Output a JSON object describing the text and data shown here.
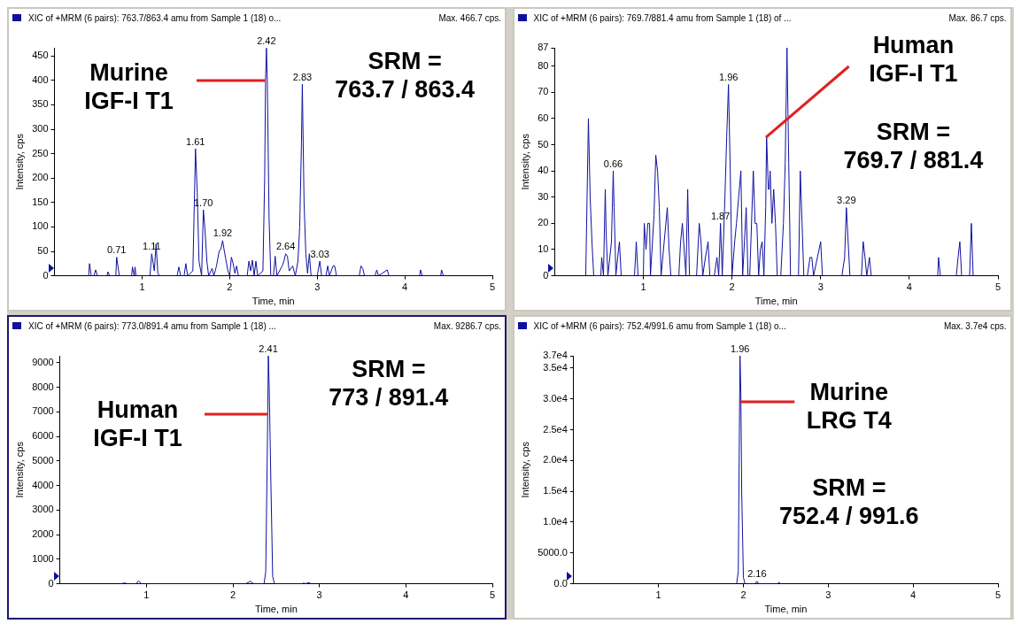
{
  "chart_data": [
    {
      "type": "line",
      "title": "XIC of +MRM (6 pairs): 763.7/863.4 amu from Sample 1 (18) o...",
      "subtitle": "Max. 466.7 cps.",
      "xlabel": "Time, min",
      "ylabel": "Intensity, cps",
      "xlim": [
        0,
        5
      ],
      "xticks": [
        1,
        2,
        3,
        4,
        5
      ],
      "ylim": [
        0,
        466.7
      ],
      "yticks": [
        0,
        50,
        100,
        150,
        200,
        250,
        300,
        350,
        400,
        450
      ],
      "grid": false,
      "legend": false,
      "marker": "none",
      "series": [
        {
          "color": "#1010a0",
          "x": [
            0.39,
            0.4,
            0.42,
            0.45,
            0.47,
            0.49,
            0.6,
            0.61,
            0.63,
            0.7,
            0.71,
            0.74,
            0.88,
            0.89,
            0.91,
            0.92,
            0.93,
            1.09,
            1.11,
            1.14,
            1.16,
            1.18,
            1.2,
            1.4,
            1.42,
            1.44,
            1.48,
            1.5,
            1.52,
            1.58,
            1.61,
            1.63,
            1.65,
            1.68,
            1.7,
            1.72,
            1.74,
            1.76,
            1.8,
            1.82,
            1.85,
            1.88,
            1.9,
            1.92,
            1.94,
            1.96,
            1.98,
            2.0,
            2.02,
            2.04,
            2.06,
            2.08,
            2.1,
            2.2,
            2.22,
            2.24,
            2.26,
            2.28,
            2.3,
            2.32,
            2.38,
            2.4,
            2.41,
            2.42,
            2.43,
            2.45,
            2.47,
            2.5,
            2.52,
            2.54,
            2.6,
            2.62,
            2.64,
            2.66,
            2.68,
            2.72,
            2.75,
            2.78,
            2.8,
            2.82,
            2.83,
            2.85,
            2.87,
            2.89,
            2.91,
            2.93,
            3.0,
            3.03,
            3.05,
            3.1,
            3.12,
            3.14,
            3.18,
            3.2,
            3.22,
            3.48,
            3.5,
            3.52,
            3.54,
            3.66,
            3.68,
            3.7,
            3.8,
            3.82,
            4.17,
            4.18,
            4.2,
            4.41,
            4.42,
            4.44
          ],
          "values": [
            0,
            25,
            0,
            0,
            12,
            0,
            0,
            8,
            0,
            0,
            38,
            0,
            0,
            18,
            0,
            18,
            0,
            0,
            45,
            10,
            65,
            5,
            0,
            0,
            18,
            0,
            0,
            25,
            0,
            10,
            260,
            170,
            30,
            0,
            135,
            90,
            30,
            0,
            15,
            0,
            20,
            50,
            55,
            72,
            50,
            30,
            10,
            0,
            38,
            25,
            5,
            20,
            0,
            0,
            30,
            10,
            32,
            0,
            30,
            0,
            10,
            200,
            400,
            466,
            400,
            120,
            0,
            0,
            40,
            0,
            20,
            30,
            45,
            40,
            10,
            20,
            0,
            30,
            100,
            270,
            392,
            150,
            45,
            5,
            45,
            0,
            0,
            30,
            0,
            0,
            20,
            0,
            20,
            20,
            0,
            0,
            20,
            15,
            0,
            0,
            12,
            0,
            12,
            0,
            0,
            12,
            0,
            0,
            12,
            0
          ]
        }
      ],
      "annotations": [
        {
          "text": "0.71",
          "x": 0.71,
          "y": 38
        },
        {
          "text": "1.11",
          "x": 1.11,
          "y": 45
        },
        {
          "text": "1.61",
          "x": 1.61,
          "y": 260
        },
        {
          "text": "1.70",
          "x": 1.7,
          "y": 135
        },
        {
          "text": "1.92",
          "x": 1.92,
          "y": 72
        },
        {
          "text": "2.42",
          "x": 2.42,
          "y": 466
        },
        {
          "text": "2.64",
          "x": 2.64,
          "y": 45
        },
        {
          "text": "2.83",
          "x": 2.83,
          "y": 392
        },
        {
          "text": "3.03",
          "x": 3.03,
          "y": 30
        },
        {
          "text": "Murine\nIGF-I T1",
          "x": 2.41,
          "y": 400
        },
        "SRM =\n763.7 / 863.4"
      ]
    },
    {
      "type": "line",
      "title": "XIC of +MRM (6 pairs): 769.7/881.4 amu from Sample 1 (18) of ...",
      "subtitle": "Max. 86.7 cps.",
      "xlabel": "Time, min",
      "ylabel": "Intensity, cps",
      "xlim": [
        0,
        5
      ],
      "xticks": [
        1,
        2,
        3,
        4,
        5
      ],
      "ylim": [
        0,
        87
      ],
      "yticks": [
        0,
        10,
        20,
        30,
        40,
        50,
        60,
        70,
        80,
        87
      ],
      "grid": false,
      "legend": false,
      "marker": "none",
      "series": [
        {
          "color": "#1010a0",
          "x": [
            0.35,
            0.38,
            0.4,
            0.42,
            0.44,
            0.52,
            0.53,
            0.55,
            0.57,
            0.58,
            0.6,
            0.64,
            0.66,
            0.67,
            0.69,
            0.71,
            0.73,
            0.75,
            0.9,
            0.92,
            0.94,
            1.0,
            1.01,
            1.03,
            1.05,
            1.07,
            1.08,
            1.12,
            1.14,
            1.16,
            1.18,
            1.2,
            1.27,
            1.29,
            1.31,
            1.4,
            1.42,
            1.44,
            1.46,
            1.48,
            1.5,
            1.52,
            1.6,
            1.63,
            1.65,
            1.67,
            1.7,
            1.73,
            1.75,
            1.8,
            1.83,
            1.85,
            1.87,
            1.89,
            1.92,
            1.94,
            1.96,
            1.98,
            2.0,
            2.03,
            2.05,
            2.1,
            2.12,
            2.16,
            2.18,
            2.2,
            2.24,
            2.26,
            2.28,
            2.3,
            2.32,
            2.34,
            2.36,
            2.38,
            2.39,
            2.41,
            2.42,
            2.43,
            2.45,
            2.47,
            2.49,
            2.51,
            2.55,
            2.58,
            2.6,
            2.62,
            2.64,
            2.66,
            2.75,
            2.77,
            2.79,
            2.81,
            2.85,
            2.88,
            2.9,
            2.92,
            3.0,
            3.02,
            3.24,
            3.27,
            3.29,
            3.31,
            3.33,
            3.46,
            3.48,
            3.5,
            3.52,
            3.55,
            3.57,
            4.32,
            4.33,
            4.35,
            4.53,
            4.55,
            4.57,
            4.59,
            4.68,
            4.7,
            4.72
          ],
          "values": [
            0,
            60,
            30,
            13,
            0,
            0,
            7,
            0,
            33,
            16,
            0,
            13,
            40,
            26,
            0,
            7,
            13,
            0,
            0,
            13,
            0,
            0,
            20,
            10,
            20,
            20,
            0,
            23,
            46,
            40,
            26,
            0,
            26,
            10,
            0,
            0,
            13,
            20,
            10,
            0,
            33,
            0,
            0,
            20,
            13,
            0,
            7,
            13,
            0,
            0,
            7,
            0,
            20,
            0,
            30,
            53,
            73,
            40,
            0,
            13,
            20,
            40,
            0,
            26,
            0,
            0,
            40,
            20,
            20,
            0,
            10,
            13,
            0,
            26,
            53,
            33,
            33,
            40,
            20,
            33,
            20,
            0,
            0,
            20,
            43,
            87,
            43,
            0,
            0,
            40,
            20,
            0,
            0,
            7,
            7,
            0,
            13,
            0,
            0,
            7,
            26,
            13,
            0,
            0,
            13,
            7,
            0,
            7,
            0,
            0,
            7,
            0,
            0,
            7,
            13,
            0,
            0,
            20,
            0
          ]
        }
      ],
      "annotations": [
        {
          "text": "0.66",
          "x": 0.66,
          "y": 40
        },
        {
          "text": "1.87",
          "x": 1.87,
          "y": 20
        },
        {
          "text": "1.96",
          "x": 1.96,
          "y": 73
        },
        {
          "text": "3.29",
          "x": 3.29,
          "y": 26
        },
        {
          "text": "Human\nIGF-I T1",
          "x": 2.39,
          "y": 53
        },
        "SRM =\n769.7 / 881.4"
      ]
    },
    {
      "type": "line",
      "title": "XIC of +MRM (6 pairs): 773.0/891.4 amu from Sample 1 (18) ...",
      "subtitle": "Max. 9286.7 cps.",
      "xlabel": "Time, min",
      "ylabel": "Intensity, cps",
      "xlim": [
        0,
        5
      ],
      "xticks": [
        1,
        2,
        3,
        4,
        5
      ],
      "ylim": [
        0,
        9286.7
      ],
      "yticks": [
        0,
        1000,
        2000,
        3000,
        4000,
        5000,
        6000,
        7000,
        8000,
        9000
      ],
      "grid": false,
      "legend": false,
      "marker": "none",
      "series": [
        {
          "color": "#1010a0",
          "x": [
            0.7,
            0.75,
            0.78,
            0.88,
            0.91,
            0.94,
            2.15,
            2.2,
            2.24,
            2.36,
            2.38,
            2.4,
            2.41,
            2.42,
            2.44,
            2.46,
            2.48,
            2.8,
            2.82,
            2.84,
            2.88,
            2.9
          ],
          "values": [
            0,
            30,
            0,
            0,
            120,
            0,
            0,
            100,
            0,
            0,
            500,
            6000,
            9280,
            8000,
            4000,
            300,
            0,
            0,
            30,
            0,
            50,
            0
          ]
        }
      ],
      "annotations": [
        {
          "text": "2.41",
          "x": 2.41,
          "y": 9280
        },
        {
          "text": "Human\nIGF-I T1",
          "x": 2.4,
          "y": 6900
        },
        "SRM =\n773 / 891.4"
      ]
    },
    {
      "type": "line",
      "title": "XIC of +MRM (6 pairs): 752.4/991.6 amu from Sample 1 (18) o...",
      "subtitle": "Max. 3.7e4 cps.",
      "xlabel": "Time, min",
      "ylabel": "Intensity, cps",
      "xlim": [
        0,
        5
      ],
      "xticks": [
        1,
        2,
        3,
        4,
        5
      ],
      "ylim": [
        0,
        37000
      ],
      "yticks": [
        {
          "value": 0,
          "label": "0.0"
        },
        {
          "value": 5000,
          "label": "5000.0"
        },
        {
          "value": 10000,
          "label": "1.0e4"
        },
        {
          "value": 15000,
          "label": "1.5e4"
        },
        {
          "value": 20000,
          "label": "2.0e4"
        },
        {
          "value": 25000,
          "label": "2.5e4"
        },
        {
          "value": 30000,
          "label": "3.0e4"
        },
        {
          "value": 35000,
          "label": "3.5e4"
        },
        {
          "value": 37000,
          "label": "3.7e4"
        }
      ],
      "grid": false,
      "legend": false,
      "marker": "none",
      "series": [
        {
          "color": "#1010a0",
          "x": [
            1.92,
            1.94,
            1.95,
            1.96,
            1.97,
            1.98,
            2.0,
            2.02,
            2.14,
            2.16,
            2.18,
            2.4,
            2.42,
            2.44
          ],
          "values": [
            0,
            2000,
            20000,
            37000,
            31000,
            15000,
            1000,
            0,
            0,
            400,
            0,
            0,
            200,
            0
          ]
        }
      ],
      "annotations": [
        {
          "text": "1.96",
          "x": 1.96,
          "y": 37000
        },
        {
          "text": "2.16",
          "x": 2.16,
          "y": 400
        },
        {
          "text": "Murine\nLRG T4",
          "x": 1.97,
          "y": 29500
        },
        "SRM =\n752.4 / 991.6"
      ]
    }
  ]
}
